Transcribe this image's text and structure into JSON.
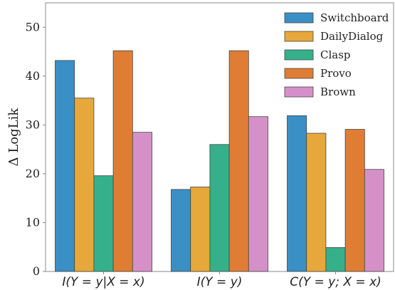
{
  "chart_data": {
    "type": "bar",
    "title": "",
    "xlabel": "",
    "ylabel": "Δ LogLik",
    "ylim": [
      0,
      55
    ],
    "yticks": [
      0,
      10,
      20,
      30,
      40,
      50
    ],
    "grid": false,
    "legend_position": "top-right",
    "categories": [
      "I(Y = y|X = x)",
      "I(Y = y)",
      "C(Y = y; X = x)"
    ],
    "series": [
      {
        "name": "Switchboard",
        "color": "#3a8fc4",
        "values": [
          43.2,
          16.8,
          31.9
        ]
      },
      {
        "name": "DailyDialog",
        "color": "#e6a83a",
        "values": [
          35.5,
          17.3,
          28.3
        ]
      },
      {
        "name": "Clasp",
        "color": "#36b08a",
        "values": [
          19.6,
          26.0,
          4.9
        ]
      },
      {
        "name": "Provo",
        "color": "#e07d35",
        "values": [
          45.2,
          45.2,
          29.1
        ]
      },
      {
        "name": "Brown",
        "color": "#d690c8",
        "values": [
          28.5,
          31.7,
          20.9
        ]
      }
    ]
  }
}
